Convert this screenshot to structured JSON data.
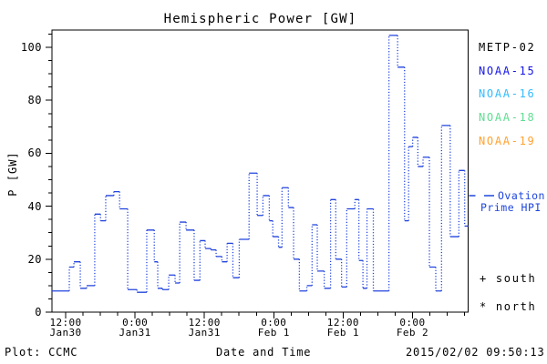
{
  "title": "Hemispheric Power [GW]",
  "axes": {
    "ylabel": "P [GW]",
    "xlabel": "Date and Time",
    "y_ticks": [
      0,
      20,
      40,
      60,
      80,
      100
    ],
    "y_minor_step": 5,
    "y_max": 106.5,
    "x_total_hours": 72,
    "x_minor_step_hours": 3,
    "x_ticks": [
      {
        "time": "12:00",
        "date": "Jan30",
        "hour": 2.37
      },
      {
        "time": "0:00",
        "date": "Jan31",
        "hour": 14.37
      },
      {
        "time": "12:00",
        "date": "Jan31",
        "hour": 26.37
      },
      {
        "time": "0:00",
        "date": "Feb 1",
        "hour": 38.37
      },
      {
        "time": "12:00",
        "date": "Feb 1",
        "hour": 50.37
      },
      {
        "time": "0:00",
        "date": "Feb 2",
        "hour": 62.37
      }
    ]
  },
  "legend": {
    "items": [
      {
        "label": "METP-02",
        "color": "#000000"
      },
      {
        "label": "NOAA-15",
        "color": "#1414e6"
      },
      {
        "label": "NOAA-16",
        "color": "#33bbff"
      },
      {
        "label": "NOAA-18",
        "color": "#5fdd92"
      },
      {
        "label": "NOAA-19",
        "color": "#ffa233"
      }
    ]
  },
  "annotations": {
    "ovation_line1": "Ovation",
    "ovation_line2": "Prime HPI",
    "ovation_color": "#1e46dc",
    "south_marker": "+ south",
    "north_marker": "* north",
    "plot_credit": "Plot: CCMC",
    "timestamp": "2015/02/02 09:50:13"
  },
  "chart_data": {
    "type": "line",
    "style": "step, dotted vertical connectors",
    "title": "Hemispheric Power [GW]",
    "xlabel": "Date and Time",
    "ylabel": "P [GW]",
    "ylim": [
      0,
      106.5
    ],
    "x_range": "Jan 30 ~09:40 to Feb 2 ~09:40 (72 h)",
    "line_color": "#2244dd",
    "series_name": "Ovation Prime HPI",
    "x_end_hours": 72,
    "steps_hours_gw": [
      [
        0,
        8
      ],
      [
        3.0,
        17
      ],
      [
        3.8,
        19
      ],
      [
        4.9,
        9
      ],
      [
        6.0,
        10
      ],
      [
        7.4,
        37
      ],
      [
        8.4,
        34.5
      ],
      [
        9.3,
        44
      ],
      [
        10.7,
        45.5
      ],
      [
        11.7,
        39
      ],
      [
        13.1,
        8.5
      ],
      [
        14.7,
        7.5
      ],
      [
        16.4,
        31
      ],
      [
        17.7,
        19
      ],
      [
        18.3,
        9
      ],
      [
        19.1,
        8.5
      ],
      [
        20.2,
        14
      ],
      [
        21.3,
        11
      ],
      [
        22.1,
        34
      ],
      [
        23.2,
        31
      ],
      [
        24.6,
        12
      ],
      [
        25.6,
        27
      ],
      [
        26.5,
        24
      ],
      [
        27.5,
        23.5
      ],
      [
        28.4,
        21
      ],
      [
        29.4,
        19
      ],
      [
        30.3,
        26
      ],
      [
        31.3,
        13
      ],
      [
        32.4,
        27.5
      ],
      [
        34.1,
        52.5
      ],
      [
        35.5,
        36.5
      ],
      [
        36.5,
        44
      ],
      [
        37.6,
        34.5
      ],
      [
        38.2,
        28.5
      ],
      [
        39.2,
        24.5
      ],
      [
        39.8,
        47
      ],
      [
        40.9,
        39.5
      ],
      [
        41.8,
        20
      ],
      [
        42.8,
        8
      ],
      [
        44.1,
        10
      ],
      [
        45.0,
        33
      ],
      [
        45.9,
        15.5
      ],
      [
        47.1,
        9
      ],
      [
        48.2,
        42.5
      ],
      [
        49.1,
        20
      ],
      [
        50.1,
        9.5
      ],
      [
        51.0,
        39
      ],
      [
        52.4,
        42.5
      ],
      [
        53.1,
        19.5
      ],
      [
        53.8,
        9
      ],
      [
        54.5,
        39
      ],
      [
        55.6,
        8
      ],
      [
        58.3,
        104.5
      ],
      [
        59.8,
        92.5
      ],
      [
        61.0,
        34.5
      ],
      [
        61.7,
        62.5
      ],
      [
        62.4,
        66
      ],
      [
        63.3,
        55
      ],
      [
        64.2,
        58.5
      ],
      [
        65.3,
        17
      ],
      [
        66.4,
        8
      ],
      [
        67.4,
        70.5
      ],
      [
        68.9,
        28.5
      ],
      [
        70.4,
        53.5
      ],
      [
        71.4,
        32.5
      ]
    ]
  }
}
